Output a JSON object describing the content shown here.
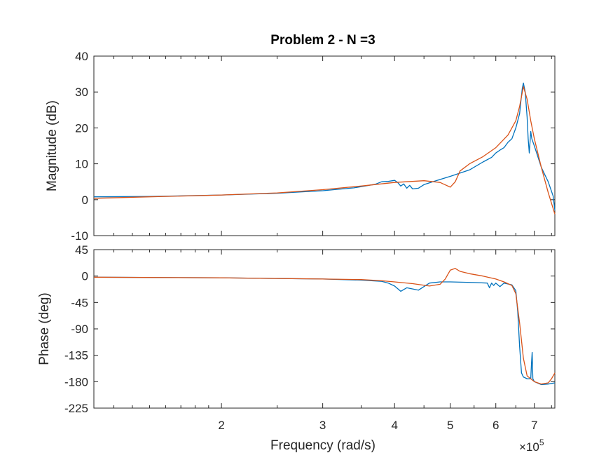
{
  "chart_data": {
    "type": "line",
    "title": "Problem 2 - N =3",
    "xlabel": "Frequency  (rad/s)",
    "x_scale": "log",
    "xlim": [
      120000,
      760000
    ],
    "x_ticks": [
      200000,
      300000,
      400000,
      500000,
      600000,
      700000
    ],
    "x_tick_labels": [
      "2",
      "3",
      "4",
      "5",
      "6",
      "7"
    ],
    "x_exponent_label": "×10",
    "x_exponent_power": "5",
    "colors": {
      "series_1": "#0072BD",
      "series_2": "#D95319",
      "axis": "#262626"
    },
    "subplots": [
      {
        "ylabel": "Magnitude (dB)",
        "ylim": [
          -10,
          40
        ],
        "y_ticks": [
          -10,
          0,
          10,
          20,
          30,
          40
        ],
        "y_tick_labels": [
          "-10",
          "0",
          "10",
          "20",
          "30",
          "40"
        ],
        "series": [
          {
            "x": [
              120000,
              150000,
              200000,
              250000,
              300000,
              340000,
              370000,
              380000,
              390000,
              400000,
              405000,
              410000,
              415000,
              420000,
              425000,
              430000,
              440000,
              450000,
              470000,
              500000,
              540000,
              570000,
              590000,
              600000,
              610000,
              620000,
              630000,
              640000,
              650000,
              660000,
              663000,
              667000,
              670000,
              675000,
              680000,
              683000,
              686000,
              690000,
              693000,
              700000,
              720000,
              740000,
              755000,
              760000
            ],
            "values": [
              0.8,
              0.9,
              1.3,
              1.8,
              2.5,
              3.3,
              4.3,
              5.0,
              5.1,
              5.4,
              4.8,
              3.8,
              4.4,
              3.2,
              4.0,
              3.0,
              3.2,
              4.2,
              5.2,
              6.5,
              8.3,
              10.5,
              11.8,
              13.0,
              13.8,
              14.5,
              16.0,
              17.0,
              20.0,
              24.0,
              27.0,
              31.0,
              32.5,
              30.0,
              23.0,
              17.0,
              13.0,
              19.0,
              17.0,
              15.0,
              9.0,
              5.0,
              1.0,
              -3.0
            ]
          },
          {
            "x": [
              120000,
              150000,
              200000,
              250000,
              300000,
              350000,
              400000,
              450000,
              480000,
              500000,
              510000,
              520000,
              540000,
              570000,
              600000,
              630000,
              650000,
              660000,
              670000,
              680000,
              690000,
              700000,
              720000,
              740000,
              760000
            ],
            "values": [
              0.4,
              0.8,
              1.3,
              1.9,
              2.8,
              3.8,
              4.8,
              5.3,
              4.8,
              3.5,
              5.0,
              8.0,
              10.0,
              12.0,
              14.5,
              18.0,
              22.0,
              26.0,
              31.5,
              28.0,
              22.0,
              17.0,
              9.0,
              2.0,
              -4.0
            ]
          }
        ]
      },
      {
        "ylabel": "Phase (deg)",
        "ylim": [
          -225,
          45
        ],
        "y_ticks": [
          -225,
          -180,
          -135,
          -90,
          -45,
          0,
          45
        ],
        "y_tick_labels": [
          "-225",
          "-180",
          "-135",
          "-90",
          "-45",
          "0",
          "45"
        ],
        "series": [
          {
            "x": [
              120000,
              200000,
              300000,
              350000,
              380000,
              390000,
              400000,
              410000,
              420000,
              440000,
              460000,
              480000,
              500000,
              550000,
              580000,
              585000,
              590000,
              595000,
              600000,
              610000,
              620000,
              640000,
              650000,
              655000,
              660000,
              665000,
              670000,
              680000,
              690000,
              692000,
              694000,
              696000,
              700000,
              720000,
              740000,
              760000
            ],
            "values": [
              -2,
              -3,
              -5,
              -7,
              -9,
              -12,
              -17,
              -26,
              -20,
              -24,
              -12,
              -10,
              -10,
              -11,
              -12,
              -20,
              -12,
              -16,
              -12,
              -18,
              -12,
              -15,
              -25,
              -60,
              -120,
              -165,
              -172,
              -175,
              -175,
              -150,
              -130,
              -175,
              -180,
              -185,
              -184,
              -182
            ]
          },
          {
            "x": [
              120000,
              200000,
              300000,
              350000,
              380000,
              400000,
              430000,
              460000,
              480000,
              490000,
              500000,
              510000,
              520000,
              540000,
              570000,
              600000,
              620000,
              640000,
              650000,
              660000,
              670000,
              680000,
              700000,
              720000,
              740000,
              750000,
              760000
            ],
            "values": [
              -2,
              -3,
              -5,
              -6,
              -8,
              -10,
              -13,
              -17,
              -14,
              -5,
              10,
              13,
              8,
              4,
              0,
              -5,
              -10,
              -16,
              -30,
              -80,
              -140,
              -170,
              -180,
              -184,
              -182,
              -175,
              -165
            ]
          }
        ]
      }
    ]
  }
}
